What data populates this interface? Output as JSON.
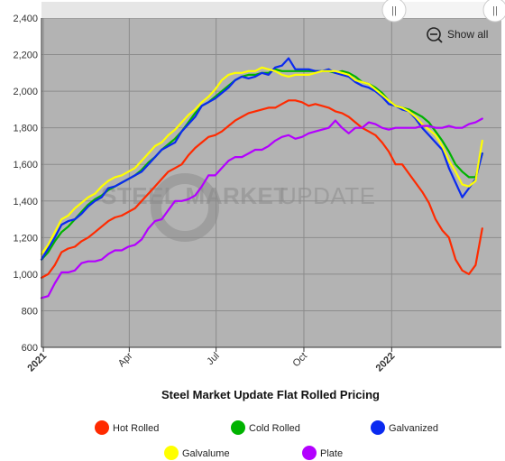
{
  "chart_data": {
    "type": "line",
    "title": "Steel Market Update Flat Rolled Pricing",
    "watermark": {
      "strong": "STEEL MARKET",
      "light": "UPDATE"
    },
    "show_all_label": "Show all",
    "x_ticks": [
      {
        "label": "2021",
        "x": "2021-01-01",
        "bold": true
      },
      {
        "label": "Apr",
        "x": "2021-04-01",
        "bold": false
      },
      {
        "label": "Jul",
        "x": "2021-07-01",
        "bold": false
      },
      {
        "label": "Oct",
        "x": "2021-10-01",
        "bold": false
      },
      {
        "label": "2022",
        "x": "2022-01-01",
        "bold": true
      }
    ],
    "x_range": [
      "2020-12-30",
      "2022-04-26"
    ],
    "y_ticks": [
      600,
      800,
      1000,
      1200,
      1400,
      1600,
      1800,
      2000,
      2200,
      2400
    ],
    "y_tick_labels": [
      "600",
      "800",
      "1,000",
      "1,200",
      "1,400",
      "1,600",
      "1,800",
      "2,000",
      "2,200",
      "2,400"
    ],
    "ylim": [
      600,
      2400
    ],
    "grid": true,
    "legend_position": "bottom",
    "x": [
      "2020-12-30",
      "2021-01-06",
      "2021-01-13",
      "2021-01-20",
      "2021-01-27",
      "2021-02-03",
      "2021-02-10",
      "2021-02-17",
      "2021-02-24",
      "2021-03-03",
      "2021-03-10",
      "2021-03-17",
      "2021-03-24",
      "2021-03-31",
      "2021-04-07",
      "2021-04-14",
      "2021-04-21",
      "2021-04-28",
      "2021-05-05",
      "2021-05-12",
      "2021-05-19",
      "2021-05-26",
      "2021-06-02",
      "2021-06-09",
      "2021-06-16",
      "2021-06-23",
      "2021-06-30",
      "2021-07-07",
      "2021-07-14",
      "2021-07-21",
      "2021-07-28",
      "2021-08-04",
      "2021-08-11",
      "2021-08-18",
      "2021-08-25",
      "2021-09-01",
      "2021-09-08",
      "2021-09-15",
      "2021-09-22",
      "2021-09-29",
      "2021-10-06",
      "2021-10-13",
      "2021-10-20",
      "2021-10-27",
      "2021-11-03",
      "2021-11-10",
      "2021-11-17",
      "2021-11-24",
      "2021-12-01",
      "2021-12-08",
      "2021-12-15",
      "2021-12-22",
      "2021-12-29",
      "2022-01-05",
      "2022-01-12",
      "2022-01-19",
      "2022-01-26",
      "2022-02-02",
      "2022-02-09",
      "2022-02-16",
      "2022-02-23",
      "2022-03-02",
      "2022-03-09",
      "2022-03-16",
      "2022-03-23",
      "2022-03-30",
      "2022-04-06",
      "2022-04-13",
      "2022-04-20",
      "2022-04-26"
    ],
    "series": [
      {
        "name": "Hot Rolled",
        "color": "#ff2a00",
        "values": [
          980,
          1000,
          1050,
          1120,
          1140,
          1150,
          1180,
          1200,
          1230,
          1260,
          1290,
          1310,
          1320,
          1340,
          1360,
          1400,
          1440,
          1480,
          1520,
          1560,
          1580,
          1600,
          1650,
          1690,
          1720,
          1750,
          1760,
          1780,
          1810,
          1840,
          1860,
          1880,
          1890,
          1900,
          1910,
          1910,
          1930,
          1950,
          1950,
          1940,
          1920,
          1930,
          1920,
          1910,
          1890,
          1880,
          1860,
          1830,
          1800,
          1780,
          1760,
          1720,
          1670,
          1600,
          1600,
          1550,
          1500,
          1450,
          1390,
          1300,
          1240,
          1200,
          1080,
          1020,
          1000,
          1050,
          1250,
          null,
          null,
          null
        ]
      },
      {
        "name": "Cold Rolled",
        "color": "#00b300",
        "values": [
          1080,
          1120,
          1180,
          1230,
          1260,
          1300,
          1340,
          1380,
          1410,
          1430,
          1460,
          1480,
          1500,
          1520,
          1540,
          1570,
          1610,
          1640,
          1680,
          1710,
          1740,
          1780,
          1830,
          1880,
          1920,
          1940,
          1970,
          2000,
          2030,
          2060,
          2080,
          2090,
          2090,
          2100,
          2100,
          2120,
          2110,
          2110,
          2110,
          2110,
          2110,
          2110,
          2110,
          2110,
          2100,
          2110,
          2100,
          2080,
          2050,
          2040,
          2020,
          1990,
          1950,
          1920,
          1910,
          1900,
          1880,
          1860,
          1830,
          1780,
          1730,
          1670,
          1600,
          1560,
          1530,
          1530,
          1660,
          null,
          null,
          null
        ]
      },
      {
        "name": "Galvanized",
        "color": "#0a2af0",
        "values": [
          1080,
          1140,
          1200,
          1270,
          1290,
          1300,
          1330,
          1370,
          1400,
          1420,
          1470,
          1480,
          1500,
          1520,
          1540,
          1560,
          1600,
          1640,
          1680,
          1700,
          1720,
          1780,
          1820,
          1860,
          1920,
          1940,
          1960,
          1990,
          2020,
          2060,
          2080,
          2070,
          2080,
          2100,
          2090,
          2130,
          2140,
          2180,
          2120,
          2120,
          2120,
          2110,
          2110,
          2120,
          2100,
          2090,
          2080,
          2050,
          2030,
          2020,
          2000,
          1970,
          1930,
          1920,
          1900,
          1890,
          1850,
          1800,
          1760,
          1720,
          1680,
          1580,
          1500,
          1420,
          1470,
          1520,
          1660,
          null,
          null,
          null
        ]
      },
      {
        "name": "Galvalume",
        "color": "#ffff00",
        "values": [
          1110,
          1160,
          1230,
          1300,
          1320,
          1360,
          1390,
          1420,
          1440,
          1480,
          1510,
          1530,
          1540,
          1560,
          1580,
          1620,
          1660,
          1700,
          1720,
          1760,
          1790,
          1830,
          1870,
          1900,
          1940,
          1970,
          2010,
          2060,
          2090,
          2100,
          2100,
          2110,
          2110,
          2130,
          2120,
          2110,
          2090,
          2080,
          2090,
          2090,
          2090,
          2100,
          2110,
          2110,
          2110,
          2100,
          2090,
          2060,
          2050,
          2040,
          2010,
          1980,
          1950,
          1920,
          1910,
          1890,
          1860,
          1820,
          1790,
          1760,
          1700,
          1620,
          1560,
          1490,
          1480,
          1510,
          1730,
          null,
          null,
          null
        ]
      },
      {
        "name": "Plate",
        "color": "#b300ff",
        "values": [
          870,
          880,
          950,
          1010,
          1010,
          1020,
          1060,
          1070,
          1070,
          1080,
          1110,
          1130,
          1130,
          1150,
          1160,
          1190,
          1250,
          1290,
          1300,
          1350,
          1400,
          1400,
          1410,
          1430,
          1480,
          1540,
          1540,
          1580,
          1620,
          1640,
          1640,
          1660,
          1680,
          1680,
          1700,
          1730,
          1750,
          1760,
          1740,
          1750,
          1770,
          1780,
          1790,
          1800,
          1840,
          1800,
          1770,
          1800,
          1800,
          1830,
          1820,
          1800,
          1790,
          1800,
          1800,
          1800,
          1800,
          1810,
          1810,
          1800,
          1800,
          1810,
          1800,
          1800,
          1820,
          1830,
          1850,
          null,
          null,
          null
        ]
      }
    ]
  }
}
